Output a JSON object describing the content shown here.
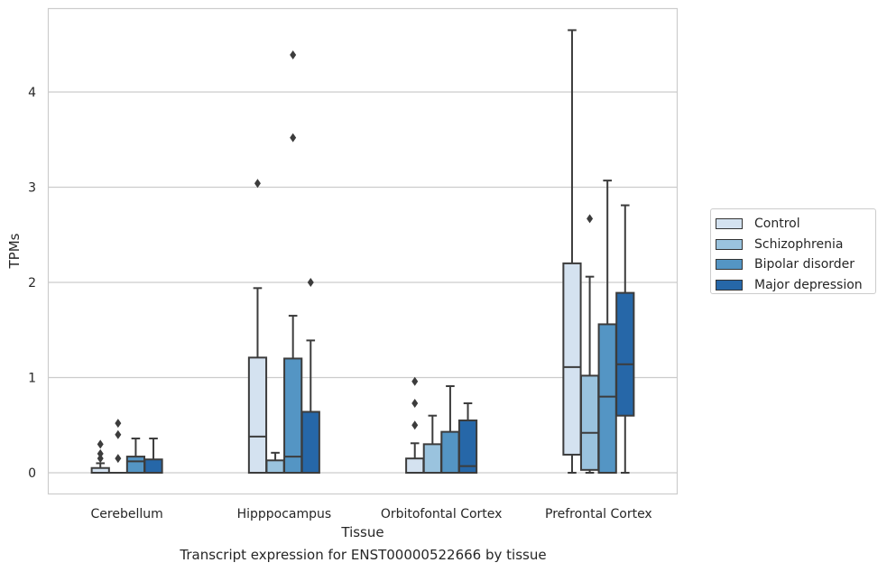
{
  "chart_data": {
    "type": "box",
    "title": "Transcript expression for ENST00000522666 by tissue",
    "xlabel": "Tissue",
    "ylabel": "TPMs",
    "ylim": [
      -0.22,
      4.9
    ],
    "yticks": [
      0,
      1,
      2,
      3,
      4
    ],
    "grid": "horizontal",
    "legend_position": "right",
    "categories": [
      "Cerebellum",
      "Hipppocampus",
      "Orbitofontal Cortex",
      "Prefrontal Cortex"
    ],
    "series": [
      {
        "name": "Control",
        "color": "#d4e2f0",
        "boxes": [
          {
            "whislo": 0,
            "q1": 0,
            "med": 0,
            "q3": 0.05,
            "whishi": 0.1,
            "fliers": [
              0.15,
              0.2,
              0.3
            ]
          },
          {
            "whislo": 0,
            "q1": 0,
            "med": 0.38,
            "q3": 1.21,
            "whishi": 1.94,
            "fliers": [
              3.04
            ]
          },
          {
            "whislo": 0,
            "q1": 0,
            "med": 0,
            "q3": 0.15,
            "whishi": 0.31,
            "fliers": [
              0.5,
              0.73,
              0.96
            ]
          },
          {
            "whislo": 0,
            "q1": 0.19,
            "med": 1.11,
            "q3": 2.2,
            "whishi": 4.65,
            "fliers": []
          }
        ]
      },
      {
        "name": "Schizophrenia",
        "color": "#9ac3de",
        "boxes": [
          {
            "whislo": 0,
            "q1": 0,
            "med": 0,
            "q3": 0,
            "whishi": 0,
            "fliers": [
              0.15,
              0.4,
              0.52
            ]
          },
          {
            "whislo": 0,
            "q1": 0,
            "med": 0,
            "q3": 0.13,
            "whishi": 0.21,
            "fliers": []
          },
          {
            "whislo": 0,
            "q1": 0,
            "med": 0,
            "q3": 0.3,
            "whishi": 0.6,
            "fliers": []
          },
          {
            "whislo": 0,
            "q1": 0.03,
            "med": 0.42,
            "q3": 1.02,
            "whishi": 2.06,
            "fliers": [
              2.67
            ]
          }
        ]
      },
      {
        "name": "Bipolar disorder",
        "color": "#5495c4",
        "boxes": [
          {
            "whislo": 0,
            "q1": 0,
            "med": 0.12,
            "q3": 0.17,
            "whishi": 0.36,
            "fliers": []
          },
          {
            "whislo": 0,
            "q1": 0,
            "med": 0.17,
            "q3": 1.2,
            "whishi": 1.65,
            "fliers": [
              3.52,
              4.39
            ]
          },
          {
            "whislo": 0,
            "q1": 0,
            "med": 0,
            "q3": 0.43,
            "whishi": 0.91,
            "fliers": []
          },
          {
            "whislo": 0,
            "q1": 0,
            "med": 0.8,
            "q3": 1.56,
            "whishi": 3.07,
            "fliers": []
          }
        ]
      },
      {
        "name": "Major depression",
        "color": "#2667a8",
        "boxes": [
          {
            "whislo": 0,
            "q1": 0,
            "med": 0,
            "q3": 0.14,
            "whishi": 0.36,
            "fliers": []
          },
          {
            "whislo": 0,
            "q1": 0,
            "med": 0,
            "q3": 0.64,
            "whishi": 1.39,
            "fliers": [
              2.0
            ]
          },
          {
            "whislo": 0,
            "q1": 0,
            "med": 0.07,
            "q3": 0.55,
            "whishi": 0.73,
            "fliers": []
          },
          {
            "whislo": 0,
            "q1": 0.6,
            "med": 1.14,
            "q3": 1.89,
            "whishi": 2.81,
            "fliers": []
          }
        ]
      }
    ]
  }
}
